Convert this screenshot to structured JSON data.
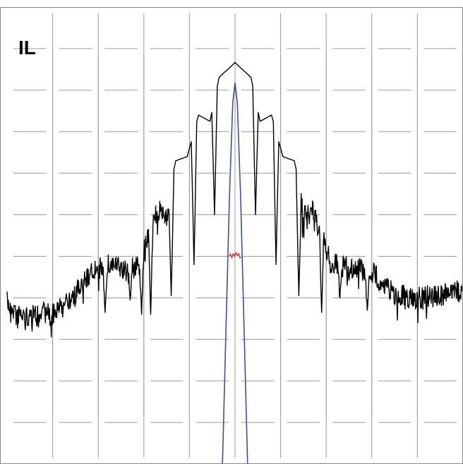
{
  "chart_data": {
    "type": "line",
    "title": "",
    "annotation": "IL",
    "xlabel": "",
    "ylabel": "",
    "grid": true,
    "grid_style": "crosshair ticks (gaps between grid segments)",
    "xlim": [
      0,
      10
    ],
    "ylim": [
      0,
      11
    ],
    "x_gridlines": [
      1,
      2,
      3,
      4,
      5,
      6,
      7,
      8,
      9
    ],
    "y_gridlines": [
      1,
      2,
      3,
      4,
      5,
      6,
      7,
      8,
      9,
      10
    ],
    "series": [
      {
        "color": "#000000",
        "envelope": [
          [
            0.0,
            4.15
          ],
          [
            0.3,
            3.85
          ],
          [
            0.7,
            3.82
          ],
          [
            1.0,
            3.9
          ],
          [
            1.4,
            4.2
          ],
          [
            1.8,
            4.85
          ],
          [
            2.3,
            5.1
          ],
          [
            2.6,
            4.9
          ],
          [
            2.9,
            5.05
          ],
          [
            3.3,
            6.35
          ],
          [
            3.5,
            6.25
          ],
          [
            3.7,
            7.3
          ],
          [
            3.95,
            7.4
          ],
          [
            4.2,
            8.4
          ],
          [
            4.45,
            8.25
          ],
          [
            4.65,
            9.3
          ],
          [
            5.0,
            9.72
          ],
          [
            5.35,
            9.3
          ],
          [
            5.55,
            8.25
          ],
          [
            5.8,
            8.4
          ],
          [
            6.05,
            7.4
          ],
          [
            6.3,
            7.3
          ],
          [
            6.5,
            6.25
          ],
          [
            6.7,
            6.35
          ],
          [
            7.1,
            5.1
          ],
          [
            7.5,
            5.0
          ],
          [
            8.0,
            4.9
          ],
          [
            8.5,
            4.35
          ],
          [
            9.0,
            4.25
          ],
          [
            9.5,
            4.35
          ],
          [
            10.0,
            4.45
          ]
        ],
        "nulls": [
          [
            0.8,
            3.9
          ],
          [
            1.3,
            4.1
          ],
          [
            2.15,
            3.65
          ],
          [
            2.7,
            3.95
          ],
          [
            2.95,
            3.6
          ],
          [
            3.15,
            3.6
          ],
          [
            3.6,
            4.05
          ],
          [
            4.1,
            4.8
          ],
          [
            4.55,
            6.0
          ],
          [
            5.45,
            6.0
          ],
          [
            5.9,
            4.8
          ],
          [
            6.4,
            4.05
          ],
          [
            6.9,
            3.65
          ],
          [
            7.3,
            4.0
          ],
          [
            7.9,
            3.7
          ]
        ]
      },
      {
        "color": "#3b4fa8",
        "points": [
          [
            4.72,
            -0.2
          ],
          [
            4.8,
            3.2
          ],
          [
            4.88,
            6.5
          ],
          [
            4.95,
            8.7
          ],
          [
            5.0,
            9.18
          ],
          [
            5.05,
            8.7
          ],
          [
            5.12,
            6.5
          ],
          [
            5.2,
            3.2
          ],
          [
            5.28,
            -0.2
          ]
        ]
      },
      {
        "color": "#e02020",
        "points": [
          [
            4.87,
            5.0
          ],
          [
            4.9,
            5.05
          ],
          [
            4.93,
            4.97
          ],
          [
            4.96,
            5.06
          ],
          [
            4.99,
            5.0
          ],
          [
            5.02,
            5.08
          ],
          [
            5.05,
            5.02
          ],
          [
            5.08,
            5.06
          ],
          [
            5.11,
            4.96
          ],
          [
            5.13,
            4.98
          ]
        ]
      }
    ]
  }
}
